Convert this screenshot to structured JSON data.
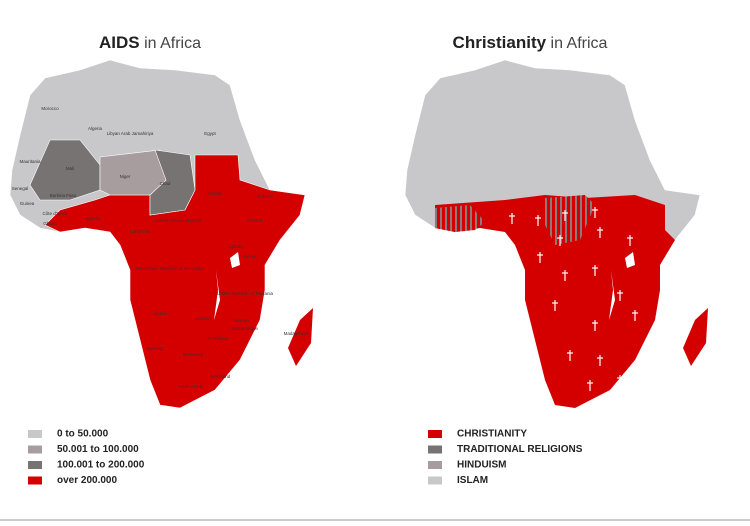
{
  "maps": [
    {
      "title_bold": "AIDS",
      "title_rest": "in Africa",
      "legend": [
        {
          "label": "0 to 50.000",
          "color": "#c8c8cb"
        },
        {
          "label": "50.001 to 100.000",
          "color": "#a79d9f"
        },
        {
          "label": "100.001 to 200.000",
          "color": "#777373"
        },
        {
          "label": "over 200.000",
          "color": "#d40000"
        }
      ],
      "labels": [
        "Morocco",
        "Algeria",
        "Libyan Arab Jamahiriya",
        "Egypt",
        "Mauritania",
        "Mali",
        "Niger",
        "Chad",
        "Sudan",
        "Senegal",
        "Guinea",
        "Burkina Faso",
        "Côte d'Ivoire",
        "Ghana",
        "Nigeria",
        "Central African Republic",
        "Ethiopia",
        "Djibouti",
        "Cameroon",
        "Uganda",
        "Kenya",
        "Democratic Republic of the Congo",
        "United Republic of Tanzania",
        "Angola",
        "Zambia",
        "Malawi",
        "Mozambique",
        "Zimbabwe",
        "Namibia",
        "Botswana",
        "Swaziland",
        "South Africa",
        "Madagascar"
      ]
    },
    {
      "title_bold": "Christianity",
      "title_rest": "in Africa",
      "legend": [
        {
          "label": "CHRISTIANITY",
          "color": "#d40000"
        },
        {
          "label": "TRADITIONAL RELIGIONS",
          "color": "#777373"
        },
        {
          "label": "HINDUISM",
          "color": "#a79d9f"
        },
        {
          "label": "ISLAM",
          "color": "#c8c8cb"
        }
      ],
      "labels": []
    }
  ]
}
